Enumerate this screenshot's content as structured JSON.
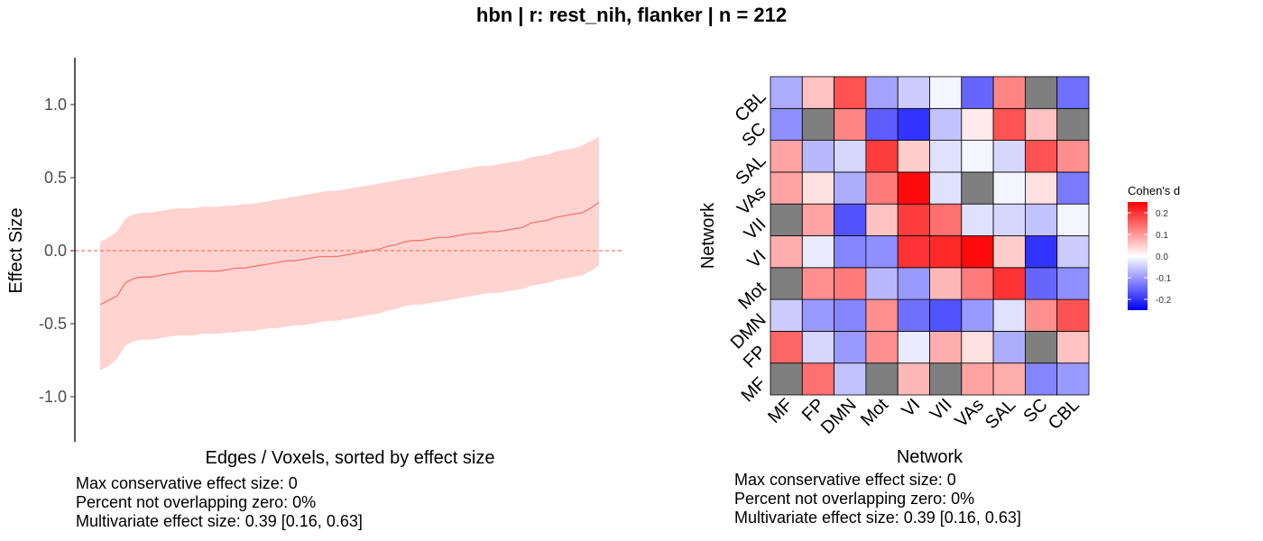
{
  "title": "hbn | r: rest_nih, flanker | n = 212",
  "chart_data": [
    {
      "type": "line",
      "xlabel": "Edges / Voxels, sorted by effect size",
      "ylabel": "Effect Size",
      "ylim": [
        -1.3,
        1.3
      ],
      "yticks": [
        "1.0",
        "0.5",
        "0.0",
        "-0.5",
        "-1.0"
      ],
      "reference_line": 0,
      "colors": {
        "line": "#f8766d",
        "band": "#ffd3d0",
        "ref": "#f8766d"
      },
      "series": [
        {
          "estimate": [
            -0.37,
            -0.34,
            -0.31,
            -0.22,
            -0.19,
            -0.18,
            -0.18,
            -0.17,
            -0.16,
            -0.15,
            -0.14,
            -0.14,
            -0.14,
            -0.14,
            -0.14,
            -0.13,
            -0.12,
            -0.12,
            -0.11,
            -0.1,
            -0.09,
            -0.08,
            -0.07,
            -0.07,
            -0.06,
            -0.05,
            -0.04,
            -0.04,
            -0.04,
            -0.03,
            -0.02,
            -0.01,
            0.0,
            0.01,
            0.03,
            0.04,
            0.06,
            0.07,
            0.07,
            0.08,
            0.09,
            0.09,
            0.1,
            0.11,
            0.12,
            0.12,
            0.13,
            0.13,
            0.14,
            0.15,
            0.16,
            0.19,
            0.2,
            0.21,
            0.23,
            0.24,
            0.25,
            0.26,
            0.29,
            0.33
          ],
          "lower": [
            -0.82,
            -0.79,
            -0.74,
            -0.65,
            -0.62,
            -0.61,
            -0.61,
            -0.6,
            -0.59,
            -0.58,
            -0.58,
            -0.58,
            -0.57,
            -0.57,
            -0.57,
            -0.56,
            -0.56,
            -0.55,
            -0.55,
            -0.54,
            -0.53,
            -0.53,
            -0.52,
            -0.51,
            -0.51,
            -0.5,
            -0.49,
            -0.48,
            -0.48,
            -0.47,
            -0.46,
            -0.45,
            -0.44,
            -0.43,
            -0.41,
            -0.4,
            -0.38,
            -0.37,
            -0.37,
            -0.36,
            -0.35,
            -0.34,
            -0.33,
            -0.32,
            -0.31,
            -0.3,
            -0.29,
            -0.29,
            -0.28,
            -0.27,
            -0.26,
            -0.24,
            -0.23,
            -0.22,
            -0.2,
            -0.19,
            -0.18,
            -0.17,
            -0.14,
            -0.1
          ],
          "upper": [
            0.06,
            0.09,
            0.13,
            0.22,
            0.25,
            0.26,
            0.26,
            0.27,
            0.28,
            0.29,
            0.29,
            0.29,
            0.3,
            0.3,
            0.3,
            0.31,
            0.31,
            0.32,
            0.32,
            0.33,
            0.34,
            0.35,
            0.36,
            0.37,
            0.38,
            0.39,
            0.4,
            0.41,
            0.41,
            0.42,
            0.43,
            0.44,
            0.45,
            0.46,
            0.47,
            0.48,
            0.49,
            0.5,
            0.51,
            0.52,
            0.53,
            0.54,
            0.55,
            0.56,
            0.57,
            0.58,
            0.58,
            0.59,
            0.6,
            0.61,
            0.62,
            0.64,
            0.65,
            0.66,
            0.68,
            0.69,
            0.7,
            0.72,
            0.75,
            0.78
          ]
        }
      ]
    },
    {
      "type": "heatmap",
      "xlabel": "Network",
      "ylabel": "Network",
      "categories": [
        "MF",
        "FP",
        "DMN",
        "Mot",
        "VI",
        "VII",
        "VAs",
        "SAL",
        "SC",
        "CBL"
      ],
      "legend": {
        "title": "Cohen's d",
        "ticks": [
          "0.2",
          "0.1",
          "0.0",
          "-0.1",
          "-0.2"
        ],
        "range": [
          -0.25,
          0.25
        ]
      },
      "colors": {
        "low": "#0000ff",
        "mid": "#ffffff",
        "high": "#ff0000",
        "na": "#7f7f7f"
      },
      "values": [
        [
          null,
          0.14,
          -0.06,
          null,
          0.07,
          null,
          0.09,
          0.08,
          -0.12,
          -0.1
        ],
        [
          0.15,
          -0.04,
          -0.1,
          0.11,
          -0.02,
          0.08,
          0.03,
          -0.08,
          null,
          0.06
        ],
        [
          -0.05,
          -0.1,
          -0.12,
          0.11,
          -0.14,
          -0.17,
          -0.1,
          -0.03,
          0.11,
          0.17
        ],
        [
          null,
          0.11,
          0.13,
          -0.07,
          -0.1,
          0.07,
          0.13,
          0.2,
          -0.15,
          -0.11
        ],
        [
          0.08,
          -0.02,
          -0.12,
          -0.11,
          0.2,
          0.21,
          0.24,
          0.05,
          -0.2,
          -0.05
        ],
        [
          null,
          0.09,
          -0.17,
          0.06,
          0.19,
          0.14,
          -0.03,
          -0.04,
          -0.06,
          -0.01
        ],
        [
          0.09,
          0.03,
          -0.08,
          0.13,
          0.24,
          -0.03,
          null,
          -0.01,
          0.03,
          -0.13
        ],
        [
          0.09,
          -0.07,
          -0.04,
          0.19,
          0.05,
          -0.03,
          -0.01,
          -0.04,
          0.17,
          0.11
        ],
        [
          -0.11,
          null,
          0.12,
          -0.16,
          -0.2,
          -0.06,
          0.02,
          0.17,
          0.06,
          null
        ],
        [
          -0.08,
          0.06,
          0.17,
          -0.09,
          -0.05,
          -0.01,
          -0.15,
          0.12,
          null,
          -0.14
        ]
      ]
    }
  ],
  "captions": {
    "left": {
      "line1": "Max conservative effect size: 0",
      "line2": "Percent not overlapping zero: 0%",
      "line3": "Multivariate effect size: 0.39 [0.16, 0.63]"
    },
    "right": {
      "line1": "Max conservative effect size: 0",
      "line2": "Percent not overlapping zero: 0%",
      "line3": "Multivariate effect size: 0.39 [0.16, 0.63]"
    }
  }
}
